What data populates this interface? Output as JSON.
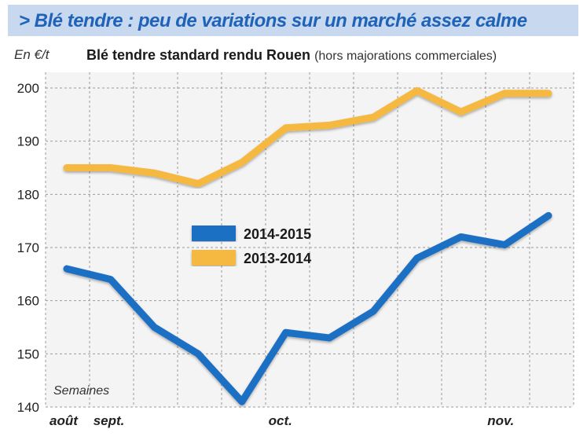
{
  "header": {
    "title": "> Blé tendre : peu de variations sur un marché assez calme"
  },
  "chart_data": {
    "type": "line",
    "title_bold": "Blé tendre standard rendu Rouen",
    "title_note": "(hors majorations commerciales)",
    "ylabel": "En €/t",
    "xlabel": "Semaines",
    "ylim": [
      140,
      200
    ],
    "yticks": [
      140,
      150,
      160,
      170,
      180,
      190,
      200
    ],
    "x_month_labels": [
      {
        "label": "août",
        "week": 0
      },
      {
        "label": "sept.",
        "week": 1
      },
      {
        "label": "oct.",
        "week": 5
      },
      {
        "label": "nov.",
        "week": 10
      }
    ],
    "weeks": 12,
    "grid": true,
    "legend_position": "center-left",
    "series": [
      {
        "name": "2014-2015",
        "color": "#1f6fc4",
        "values": [
          166,
          164,
          155,
          150,
          141,
          154,
          153,
          158,
          168,
          172,
          170.5,
          176
        ]
      },
      {
        "name": "2013-2014",
        "color": "#f5b841",
        "values": [
          185,
          185,
          184,
          182,
          186,
          192.5,
          193,
          194.5,
          199.5,
          195.5,
          199,
          199
        ]
      }
    ]
  }
}
